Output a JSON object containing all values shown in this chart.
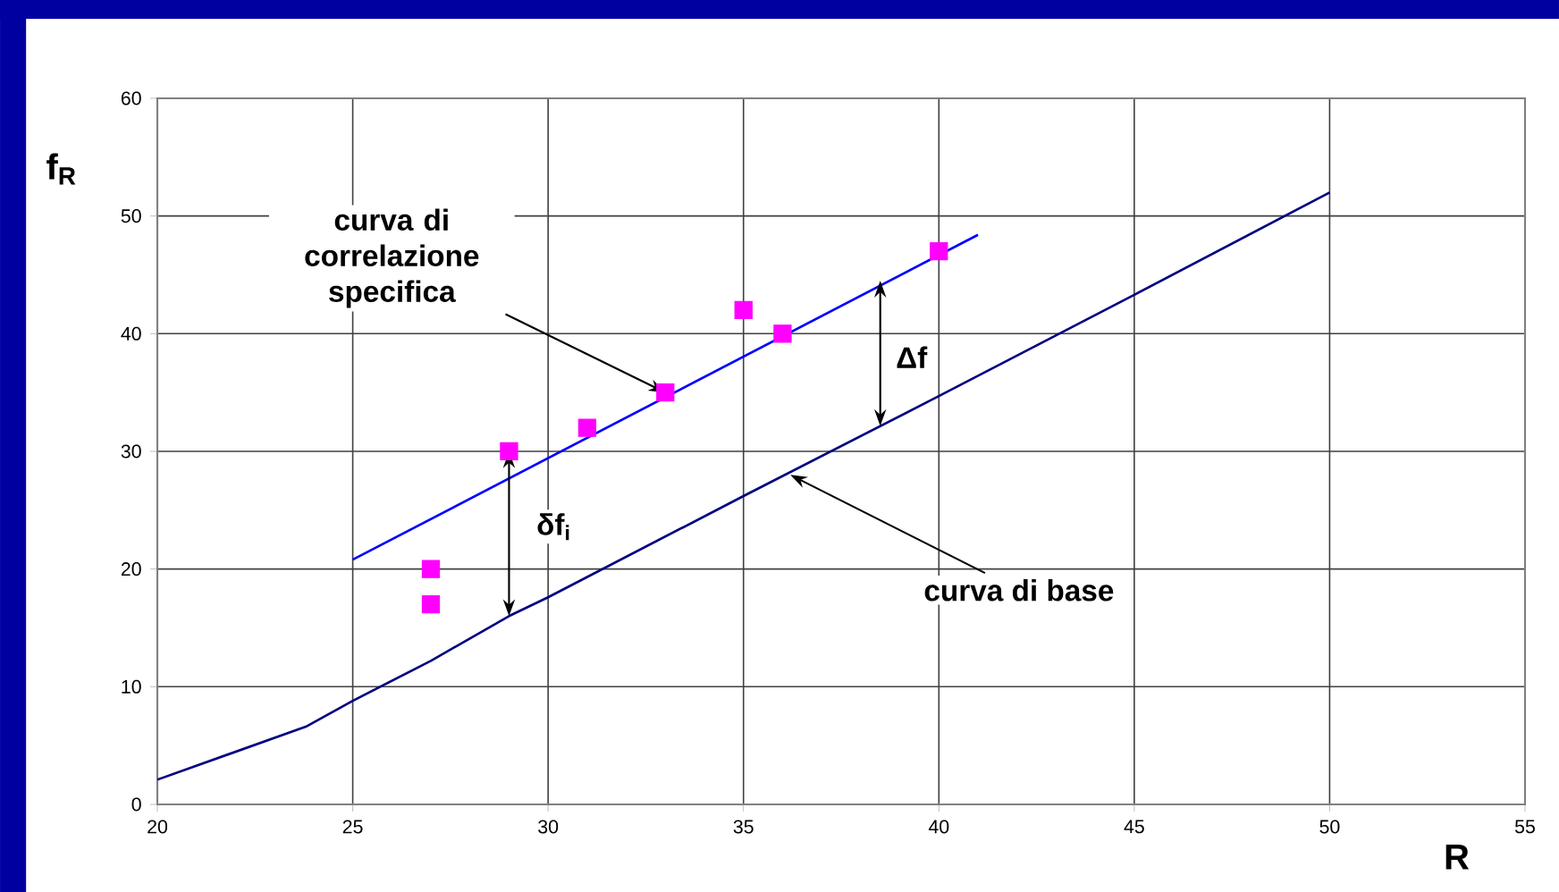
{
  "chart_data": {
    "type": "scatter",
    "xlabel": "R",
    "ylabel": "f$_{R}$",
    "xlim": [
      20,
      55
    ],
    "ylim": [
      0,
      60
    ],
    "xticks": [
      20,
      25,
      30,
      35,
      40,
      45,
      50,
      55
    ],
    "yticks": [
      0,
      10,
      20,
      30,
      40,
      50,
      60
    ],
    "grid": true,
    "series": [
      {
        "type": "line",
        "color": "#000080",
        "marker": "none",
        "x": [
          20,
          23.8,
          25,
          27,
          29,
          30,
          35,
          40,
          45,
          50
        ],
        "values": [
          2.1,
          6.6,
          8.8,
          12.2,
          16,
          17.6,
          26.2,
          34.7,
          43.3,
          52
        ]
      },
      {
        "type": "line",
        "color": "#0000ff",
        "marker": "none",
        "x": [
          25,
          41
        ],
        "values": [
          20.8,
          48.4
        ]
      },
      {
        "color": "#ff00ff",
        "marker": "square",
        "x": [
          27,
          27,
          29,
          31,
          33,
          35,
          36,
          40
        ],
        "values": [
          20,
          17,
          30,
          32,
          35,
          42,
          40,
          47
        ]
      }
    ],
    "annotations": [
      {
        "text": "curva di correlazione specifica",
        "x": 33,
        "y": 35
      },
      {
        "text": "curva di base",
        "x": 36.2,
        "y": 28
      },
      {
        "text": "δf$_{i}$",
        "x": 29,
        "y": 30
      },
      {
        "text": "Δf",
        "x": 38.5,
        "y": 44.5
      }
    ]
  }
}
